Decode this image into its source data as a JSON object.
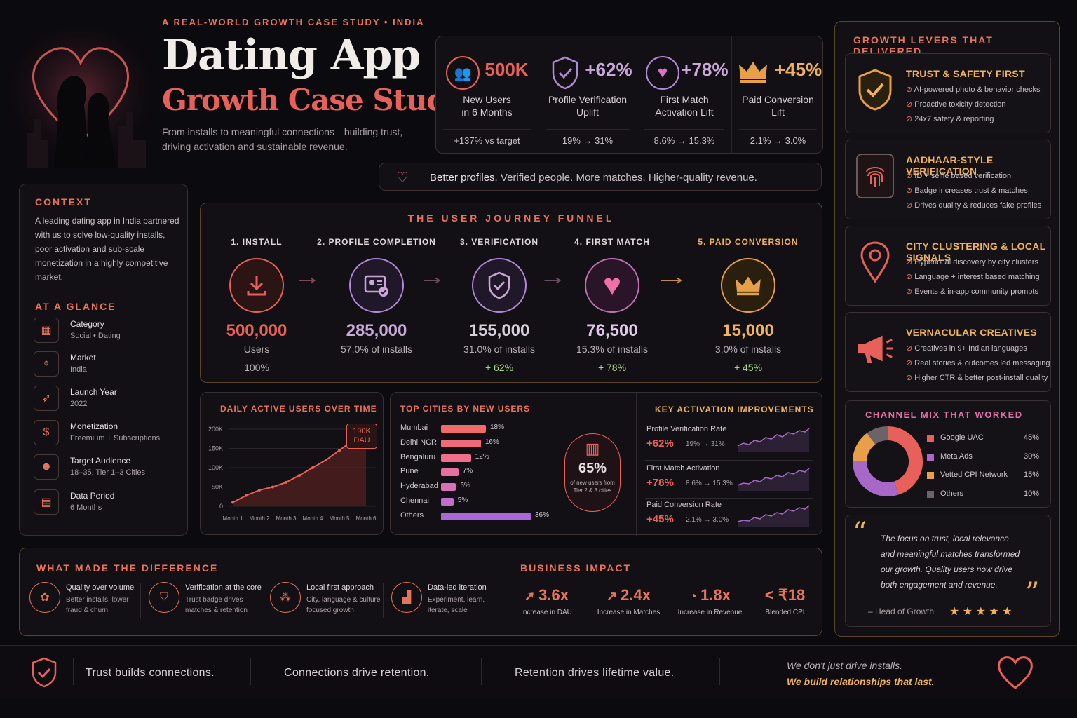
{
  "header": {
    "kicker": "A REAL-WORLD GROWTH CASE STUDY • INDIA",
    "title": "Dating App",
    "subtitle": "Growth Case Study",
    "description_line1": "From installs to meaningful connections—building trust,",
    "description_line2": "driving activation and sustainable revenue."
  },
  "stats": [
    {
      "value": "500K",
      "label_line1": "New Users",
      "label_line2": "in 6 Months",
      "foot": "+137% vs target",
      "icon": "users-icon"
    },
    {
      "value": "+62%",
      "label_line1": "Profile Verification",
      "label_line2": "Uplift",
      "foot": "19% → 31%",
      "icon": "shield-check-icon"
    },
    {
      "value": "+78%",
      "label_line1": "First Match",
      "label_line2": "Activation Lift",
      "foot": "8.6% → 15.3%",
      "icon": "heart-icon"
    },
    {
      "value": "+45%",
      "label_line1": "Paid Conversion",
      "label_line2": "Lift",
      "foot": "2.1% → 3.0%",
      "icon": "crown-icon"
    }
  ],
  "tagline": {
    "lead": "Better profiles.",
    "rest": "Verified people. More matches. Higher-quality revenue."
  },
  "context": {
    "title": "CONTEXT",
    "text_lines": [
      "A leading dating app in India partnered",
      "with us to solve low-quality installs,",
      "poor activation and sub-scale",
      "monetization in a highly competitive",
      "market."
    ]
  },
  "glance": {
    "title": "AT A GLANCE",
    "items": [
      {
        "key": "Category",
        "value": "Social • Dating",
        "icon": "grid-icon"
      },
      {
        "key": "Market",
        "value": "India",
        "icon": "location-pin-icon"
      },
      {
        "key": "Launch Year",
        "value": "2022",
        "icon": "rocket-icon"
      },
      {
        "key": "Monetization",
        "value": "Freemium + Subscriptions",
        "icon": "dollar-icon"
      },
      {
        "key": "Target Audience",
        "value": "18–35, Tier 1–3 Cities",
        "icon": "audience-icon"
      },
      {
        "key": "Data Period",
        "value": "6 Months",
        "icon": "calendar-icon"
      }
    ]
  },
  "funnel": {
    "title": "THE USER JOURNEY FUNNEL",
    "steps": [
      {
        "title": "1. INSTALL",
        "value": "500,000",
        "sub": "Users",
        "pct": "100%",
        "color": "#e8605a",
        "icon": "download-icon"
      },
      {
        "title": "2. PROFILE COMPLETION",
        "value": "285,000",
        "sub": "57.0% of installs",
        "pct": "",
        "color": "#c9a8d8",
        "icon": "profile-card-icon"
      },
      {
        "title": "3. VERIFICATION",
        "value": "155,000",
        "sub": "31.0% of installs",
        "pct": "+ 62%",
        "color": "#c9a8d8",
        "icon": "shield-check-icon"
      },
      {
        "title": "4. FIRST MATCH",
        "value": "76,500",
        "sub": "15.3% of installs",
        "pct": "+ 78%",
        "color": "#f070a8",
        "icon": "heart-icon"
      },
      {
        "title": "5. PAID CONVERSION",
        "value": "15,000",
        "sub": "3.0% of installs",
        "pct": "+ 45%",
        "color": "#f0b25a",
        "icon": "crown-icon"
      }
    ]
  },
  "dau": {
    "title": "DAILY ACTIVE USERS OVER TIME",
    "badge_value": "190K",
    "badge_unit": "DAU"
  },
  "cities": {
    "title": "TOP CITIES BY NEW USERS",
    "callout_value": "65%",
    "callout_line1": "of new users from",
    "callout_line2": "Tier 2 & 3 cities"
  },
  "activation": {
    "title": "KEY ACTIVATION IMPROVEMENTS",
    "rows": [
      {
        "label": "Profile Verification Rate",
        "lift": "+62%",
        "range": "19% → 31%"
      },
      {
        "label": "First Match Activation",
        "lift": "+78%",
        "range": "8.6% → 15.3%"
      },
      {
        "label": "Paid Conversion Rate",
        "lift": "+45%",
        "range": "2.1% → 3.0%"
      }
    ]
  },
  "difference": {
    "title": "WHAT MADE THE DIFFERENCE",
    "items": [
      {
        "head": "Quality over volume",
        "line1": "Better installs, lower",
        "line2": "fraud & churn",
        "icon": "quality-icon"
      },
      {
        "head": "Verification at the core",
        "line1": "Trust badge drives",
        "line2": "matches & retention",
        "icon": "shield-check-icon"
      },
      {
        "head": "Local first approach",
        "line1": "City, language & culture",
        "line2": "focused growth",
        "icon": "community-icon"
      },
      {
        "head": "Data-led iteration",
        "line1": "Experiment, learn,",
        "line2": "iterate, scale",
        "icon": "chart-icon"
      }
    ]
  },
  "impact": {
    "title": "BUSINESS IMPACT",
    "items": [
      {
        "value": "3.6x",
        "label": "Increase in DAU",
        "icon": "growth-arrow-icon"
      },
      {
        "value": "2.4x",
        "label": "Increase in Matches",
        "icon": "trend-icon"
      },
      {
        "value": "1.8x",
        "label": "Increase in Revenue",
        "icon": "revenue-icon"
      },
      {
        "value": "< ₹18",
        "label": "Blended CPI",
        "icon": ""
      }
    ]
  },
  "levers": {
    "title": "GROWTH LEVERS THAT DELIVERED",
    "items": [
      {
        "head": "TRUST & SAFETY FIRST",
        "points": [
          "AI-powered photo & behavior checks",
          "Proactive toxicity detection",
          "24x7 safety & reporting"
        ],
        "icon": "shield-check-icon"
      },
      {
        "head": "AADHAAR-STYLE VERIFICATION",
        "points": [
          "ID + selfie based verification",
          "Badge increases trust & matches",
          "Drives quality & reduces fake profiles"
        ],
        "icon": "fingerprint-icon"
      },
      {
        "head": "CITY CLUSTERING & LOCAL SIGNALS",
        "points": [
          "Hyperlocal discovery by city clusters",
          "Language + interest based matching",
          "Events & in-app community prompts"
        ],
        "icon": "location-pin-icon"
      },
      {
        "head": "VERNACULAR CREATIVES",
        "points": [
          "Creatives in 9+ Indian languages",
          "Real stories & outcomes led messaging",
          "Higher CTR & better post-install quality"
        ],
        "icon": "megaphone-icon"
      }
    ]
  },
  "channel": {
    "title": "CHANNEL MIX THAT WORKED"
  },
  "quote": {
    "lines": [
      "The focus on trust, local relevance",
      "and meaningful matches transformed",
      "our growth. Quality users now drive",
      "both engagement and revenue."
    ],
    "author": "– Head of Growth",
    "stars": "★ ★ ★ ★ ★"
  },
  "footer": {
    "t1": "Trust builds connections.",
    "t2": "Connections drive retention.",
    "t3": "Retention drives lifetime value.",
    "q1": "We don't just drive installs.",
    "q2": "We build relationships that last."
  },
  "chart_data": [
    {
      "type": "area",
      "title": "DAILY ACTIVE USERS OVER TIME",
      "x": [
        "Month 1",
        "Month 1.5",
        "Month 2",
        "Month 2.5",
        "Month 3",
        "Month 3.5",
        "Month 4",
        "Month 4.5",
        "Month 5",
        "Month 5.5",
        "Month 6"
      ],
      "categories": [
        "Month 1",
        "Month 2",
        "Month 3",
        "Month 4",
        "Month 5",
        "Month 6"
      ],
      "values": [
        10000,
        28000,
        42000,
        50000,
        62000,
        80000,
        100000,
        120000,
        145000,
        170000,
        190000
      ],
      "y_ticks": [
        "0",
        "50K",
        "100K",
        "150K",
        "200K"
      ],
      "ylim": [
        0,
        200000
      ]
    },
    {
      "type": "bar",
      "title": "TOP CITIES BY NEW USERS",
      "categories": [
        "Mumbai",
        "Delhi NCR",
        "Bengaluru",
        "Pune",
        "Hyderabad",
        "Chennai",
        "Others"
      ],
      "values": [
        18,
        16,
        12,
        7,
        6,
        5,
        36
      ],
      "labels": [
        "18%",
        "16%",
        "12%",
        "7%",
        "6%",
        "5%",
        "36%"
      ]
    },
    {
      "type": "pie",
      "title": "CHANNEL MIX THAT WORKED",
      "categories": [
        "Google UAC",
        "Meta Ads",
        "Vetted CPI Network",
        "Others"
      ],
      "values": [
        45,
        30,
        15,
        10
      ],
      "labels": [
        "45%",
        "30%",
        "15%",
        "10%"
      ],
      "colors": [
        "#e8605a",
        "#a868c8",
        "#e8a048",
        "#6a6468"
      ]
    }
  ]
}
